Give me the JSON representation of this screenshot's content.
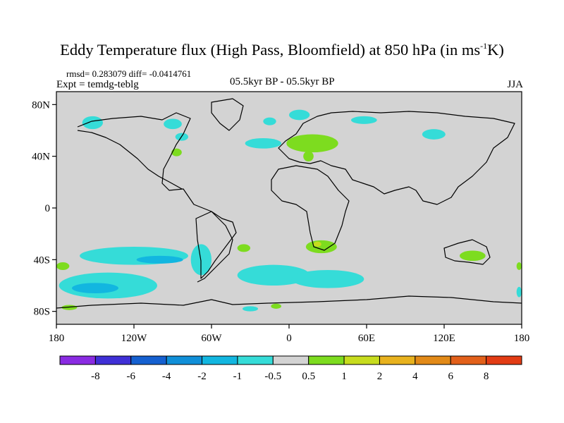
{
  "title": {
    "main": "Eddy Temperature flux (High Pass, Bloomfield) at 850 hPa (in ms",
    "sup": "-1",
    "tail": "K)"
  },
  "stats": "rmsd= 0.283079  diff= -0.0414761",
  "expt": "Expt = temdg-teblg",
  "center_label": "05.5kyr BP - 05.5kyr BP",
  "season": "JJA",
  "lat_ticks": [
    "80N",
    "40N",
    "0",
    "40S",
    "80S"
  ],
  "lon_ticks": [
    "180",
    "120W",
    "60W",
    "0",
    "60E",
    "120E",
    "180"
  ],
  "colorbar": {
    "colors": [
      "#8a2be2",
      "#3f2fd6",
      "#1560d0",
      "#108fd8",
      "#12b6e0",
      "#35dcd8",
      "#d3d3d3",
      "#7ddc1f",
      "#c7dc1e",
      "#e8b21e",
      "#e28a18",
      "#e2601a",
      "#e23c14"
    ],
    "labels": [
      "-8",
      "-6",
      "-4",
      "-2",
      "-1",
      "-0.5",
      "0.5",
      "1",
      "2",
      "4",
      "6",
      "8"
    ]
  },
  "chart_data": {
    "type": "heatmap",
    "title": "Eddy Temperature flux (High Pass, Bloomfield) at 850 hPa (in ms-1K)",
    "subtitle": "05.5kyr BP - 05.5kyr BP",
    "season": "JJA",
    "xlabel": "",
    "ylabel": "",
    "xlim": [
      -180,
      180
    ],
    "ylim": [
      -90,
      90
    ],
    "levels": [
      -8,
      -6,
      -4,
      -2,
      -1,
      -0.5,
      0.5,
      1,
      2,
      4,
      6,
      8
    ],
    "background": "#d3d3d3",
    "features": [
      {
        "name": "arctic-canada",
        "lon": -152,
        "lat": 66,
        "rx": 8,
        "ry": 5,
        "color": "#35dcd8"
      },
      {
        "name": "baffin",
        "lon": -90,
        "lat": 65,
        "rx": 7,
        "ry": 4,
        "color": "#35dcd8"
      },
      {
        "name": "hudson",
        "lon": -83,
        "lat": 55,
        "rx": 5,
        "ry": 3,
        "color": "#35dcd8"
      },
      {
        "name": "great-lakes",
        "lon": -87,
        "lat": 43,
        "rx": 4,
        "ry": 3,
        "color": "#7ddc1f"
      },
      {
        "name": "north-atlantic",
        "lon": -15,
        "lat": 67,
        "rx": 5,
        "ry": 3,
        "color": "#35dcd8"
      },
      {
        "name": "barents",
        "lon": 8,
        "lat": 72,
        "rx": 8,
        "ry": 4,
        "color": "#35dcd8"
      },
      {
        "name": "kara",
        "lon": 58,
        "lat": 68,
        "rx": 10,
        "ry": 3,
        "color": "#35dcd8"
      },
      {
        "name": "atlantic-west",
        "lon": -20,
        "lat": 50,
        "rx": 14,
        "ry": 4,
        "color": "#35dcd8"
      },
      {
        "name": "europe",
        "lon": 18,
        "lat": 50,
        "rx": 20,
        "ry": 7,
        "color": "#7ddc1f"
      },
      {
        "name": "mediterranean",
        "lon": 15,
        "lat": 40,
        "rx": 4,
        "ry": 4,
        "color": "#7ddc1f"
      },
      {
        "name": "mongolia",
        "lon": 112,
        "lat": 57,
        "rx": 9,
        "ry": 4,
        "color": "#35dcd8"
      },
      {
        "name": "south-pacific",
        "lon": -120,
        "lat": -37,
        "rx": 42,
        "ry": 7,
        "color": "#35dcd8"
      },
      {
        "name": "south-pacific-core",
        "lon": -100,
        "lat": -40,
        "rx": 18,
        "ry": 3,
        "color": "#12b6e0"
      },
      {
        "name": "southern-ocean-pacific",
        "lon": -140,
        "lat": -60,
        "rx": 38,
        "ry": 10,
        "color": "#35dcd8"
      },
      {
        "name": "southern-ocean-core",
        "lon": -150,
        "lat": -62,
        "rx": 18,
        "ry": 4,
        "color": "#12b6e0"
      },
      {
        "name": "argentina",
        "lon": -68,
        "lat": -40,
        "rx": 8,
        "ry": 12,
        "color": "#35dcd8"
      },
      {
        "name": "scotia",
        "lon": -12,
        "lat": -52,
        "rx": 28,
        "ry": 8,
        "color": "#35dcd8"
      },
      {
        "name": "south-atlantic-green",
        "lon": -35,
        "lat": -31,
        "rx": 5,
        "ry": 3,
        "color": "#7ddc1f"
      },
      {
        "name": "south-africa",
        "lon": 25,
        "lat": -30,
        "rx": 12,
        "ry": 5,
        "color": "#7ddc1f"
      },
      {
        "name": "south-africa-core",
        "lon": 22,
        "lat": -28,
        "rx": 3,
        "ry": 2,
        "color": "#c7dc1e"
      },
      {
        "name": "indian-ocean",
        "lon": 30,
        "lat": -55,
        "rx": 28,
        "ry": 7,
        "color": "#35dcd8"
      },
      {
        "name": "australia",
        "lon": 142,
        "lat": -37,
        "rx": 10,
        "ry": 4,
        "color": "#7ddc1f"
      },
      {
        "name": "dateline-east",
        "lon": -175,
        "lat": -45,
        "rx": 5,
        "ry": 3,
        "color": "#7ddc1f"
      },
      {
        "name": "far-east-south",
        "lon": 178,
        "lat": -45,
        "rx": 2,
        "ry": 3,
        "color": "#7ddc1f"
      },
      {
        "name": "far-east-south-2",
        "lon": 178,
        "lat": -65,
        "rx": 2,
        "ry": 4,
        "color": "#35dcd8"
      },
      {
        "name": "antarctic-coast",
        "lon": -30,
        "lat": -78,
        "rx": 6,
        "ry": 2,
        "color": "#35dcd8"
      },
      {
        "name": "ross-green",
        "lon": -170,
        "lat": -77,
        "rx": 6,
        "ry": 2,
        "color": "#7ddc1f"
      },
      {
        "name": "weddell-green",
        "lon": -10,
        "lat": -76,
        "rx": 4,
        "ry": 2,
        "color": "#7ddc1f"
      }
    ]
  }
}
